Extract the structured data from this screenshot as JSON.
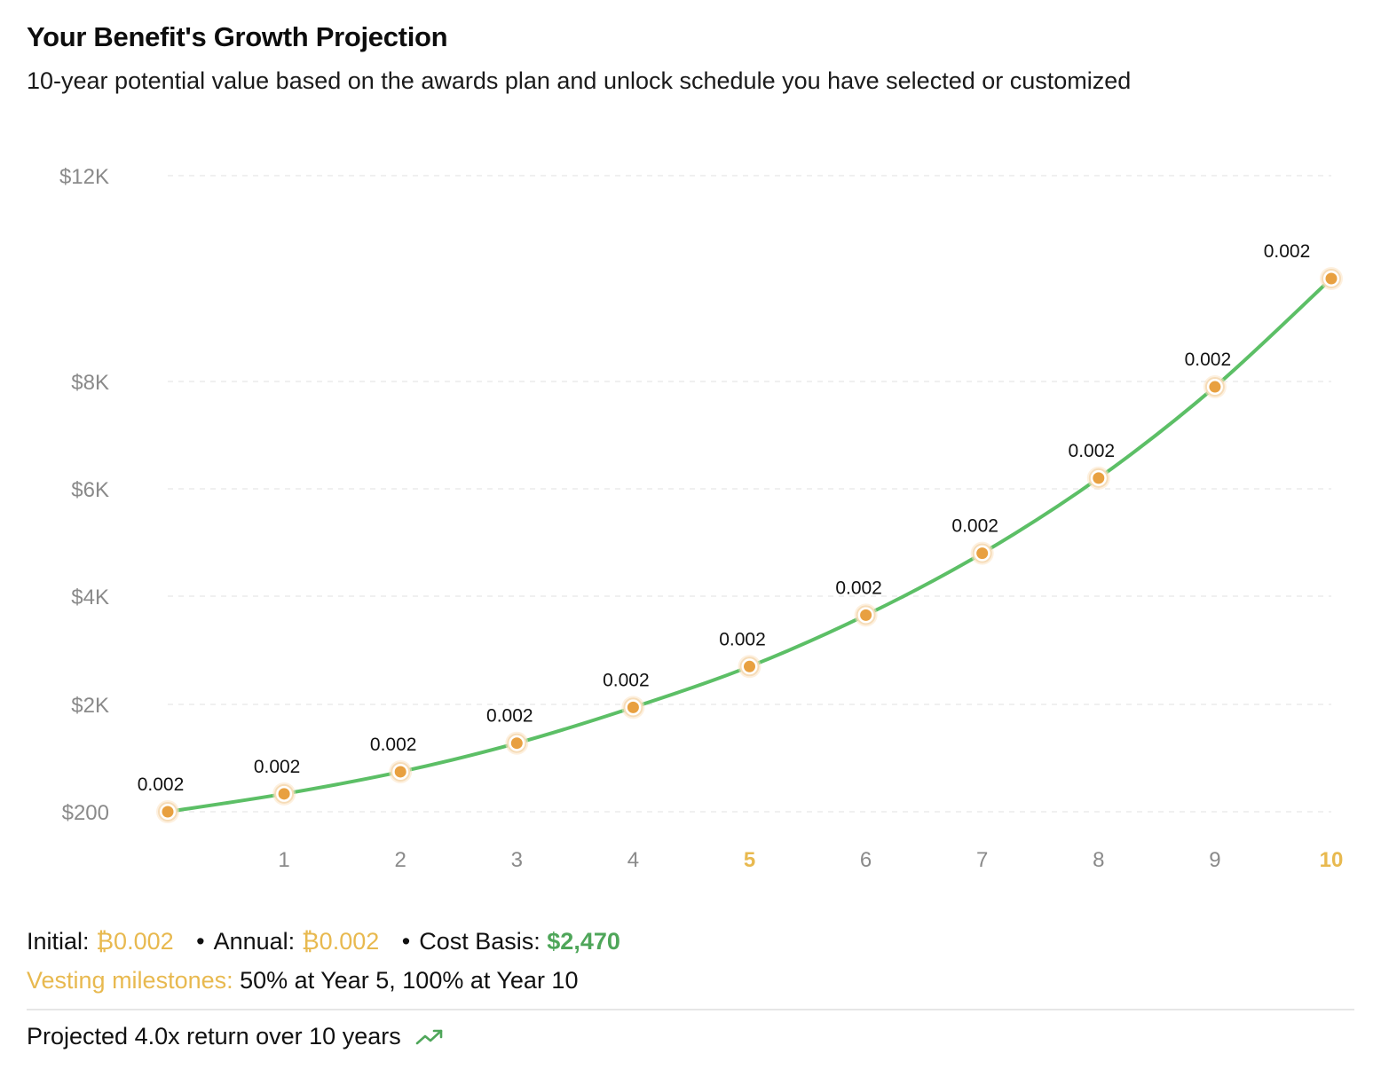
{
  "header": {
    "title": "Your Benefit's Growth Projection",
    "subtitle": "10-year potential value based on the awards plan and unlock schedule you have selected or customized"
  },
  "chart_data": {
    "type": "line",
    "x": [
      0,
      1,
      2,
      3,
      4,
      5,
      6,
      7,
      8,
      9,
      10
    ],
    "x_tick_labels": [
      "1",
      "2",
      "3",
      "4",
      "5",
      "6",
      "7",
      "8",
      "9",
      "10"
    ],
    "highlighted_ticks": [
      "5",
      "10"
    ],
    "y_tick_labels": [
      "$200",
      "$2K",
      "$4K",
      "$6K",
      "$8K",
      "$12K"
    ],
    "y_ticks": [
      200,
      2000,
      4000,
      6000,
      8000,
      12000
    ],
    "series": [
      {
        "values": [
          200,
          500,
          870,
          1350,
          1950,
          2700,
          3650,
          4800,
          6200,
          7900,
          10000
        ],
        "point_labels": [
          "0.002",
          "0.002",
          "0.002",
          "0.002",
          "0.002",
          "0.002",
          "0.002",
          "0.002",
          "0.002",
          "0.002",
          "0.002"
        ]
      }
    ],
    "ylim": [
      200,
      12000
    ],
    "grid": true,
    "line_color": "#5cbf66",
    "marker_color": "#e8a040",
    "highlight_color": "#e8b94f"
  },
  "summary": {
    "initial_label": "Initial:",
    "initial_value": "₿0.002",
    "annual_label": "Annual:",
    "annual_value": "₿0.002",
    "cost_basis_label": "Cost Basis:",
    "cost_basis_value": "$2,470",
    "milestones_label": "Vesting milestones:",
    "milestones_value": "50% at Year 5, 100% at Year 10",
    "footer_text": "Projected 4.0x return over 10 years",
    "footer_icon": "trending-up-icon"
  }
}
